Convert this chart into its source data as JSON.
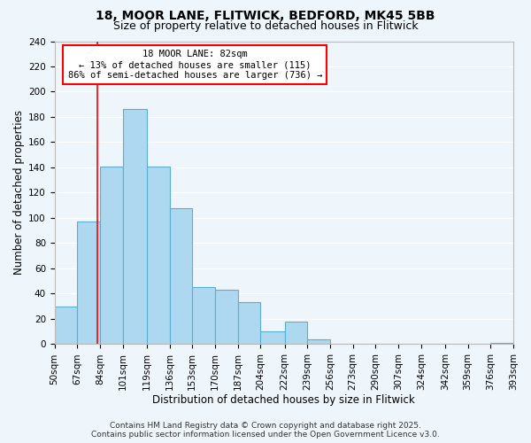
{
  "title1": "18, MOOR LANE, FLITWICK, BEDFORD, MK45 5BB",
  "title2": "Size of property relative to detached houses in Flitwick",
  "xlabel": "Distribution of detached houses by size in Flitwick",
  "ylabel": "Number of detached properties",
  "bar_left_edges": [
    50,
    67,
    84,
    101,
    119,
    136,
    153,
    170,
    187,
    204,
    222,
    239,
    256,
    273,
    290,
    307,
    324,
    342,
    359,
    376
  ],
  "bar_widths": [
    17,
    17,
    17,
    18,
    17,
    17,
    17,
    17,
    17,
    18,
    17,
    17,
    17,
    17,
    17,
    17,
    18,
    17,
    17,
    17
  ],
  "bar_heights": [
    30,
    97,
    141,
    186,
    141,
    108,
    45,
    43,
    33,
    10,
    18,
    4,
    0,
    0,
    0,
    0,
    0,
    0,
    0,
    1
  ],
  "bar_color": "#add8f0",
  "bar_edge_color": "#5bafd6",
  "xlim": [
    50,
    393
  ],
  "ylim": [
    0,
    240
  ],
  "yticks": [
    0,
    20,
    40,
    60,
    80,
    100,
    120,
    140,
    160,
    180,
    200,
    220,
    240
  ],
  "xtick_labels": [
    "50sqm",
    "67sqm",
    "84sqm",
    "101sqm",
    "119sqm",
    "136sqm",
    "153sqm",
    "170sqm",
    "187sqm",
    "204sqm",
    "222sqm",
    "239sqm",
    "256sqm",
    "273sqm",
    "290sqm",
    "307sqm",
    "324sqm",
    "342sqm",
    "359sqm",
    "376sqm",
    "393sqm"
  ],
  "xtick_positions": [
    50,
    67,
    84,
    101,
    119,
    136,
    153,
    170,
    187,
    204,
    222,
    239,
    256,
    273,
    290,
    307,
    324,
    342,
    359,
    376,
    393
  ],
  "property_line_x": 82,
  "annotation_title": "18 MOOR LANE: 82sqm",
  "annotation_line1": "← 13% of detached houses are smaller (115)",
  "annotation_line2": "86% of semi-detached houses are larger (736) →",
  "footer_line1": "Contains HM Land Registry data © Crown copyright and database right 2025.",
  "footer_line2": "Contains public sector information licensed under the Open Government Licence v3.0.",
  "bg_color": "#eef5fb",
  "grid_color": "#ffffff",
  "title_fontsize": 10,
  "subtitle_fontsize": 9,
  "axis_label_fontsize": 8.5,
  "tick_fontsize": 7.5,
  "footer_fontsize": 6.5
}
